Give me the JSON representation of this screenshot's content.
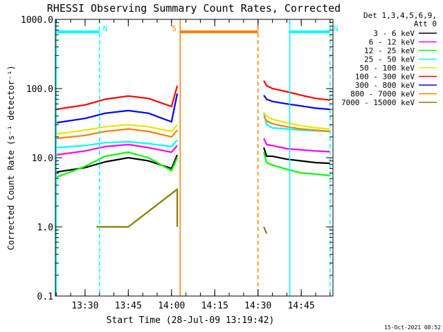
{
  "chart_data": {
    "type": "line",
    "title": "RHESSI Observing Summary Count Rates, Corrected",
    "xlabel": "Start Time (28-Jul-09 13:19:42)",
    "ylabel": "Corrected Count Rate (s⁻¹ detector⁻¹)",
    "y_scale": "log",
    "ylim": [
      0.1,
      1000
    ],
    "xlim": [
      "13:19:42",
      "14:56:00"
    ],
    "x_ticks": [
      "13:30",
      "13:45",
      "14:00",
      "14:15",
      "14:30",
      "14:45"
    ],
    "y_ticks": [
      "0.1",
      "1.0",
      "10.0",
      "100.0",
      "1000.0"
    ],
    "legend_position": "right",
    "legend_header": [
      "Det 1,3,4,5,6,9,",
      "Att 0"
    ],
    "timestamp": "15-Oct-2021 08:52",
    "series": [
      {
        "name": "3 - 6 keV",
        "color": "#000000",
        "x": [
          "13:20",
          "13:30",
          "13:37",
          "13:45",
          "13:52",
          "14:00",
          "14:02",
          "14:31",
          "14:32",
          "14:33",
          "14:35",
          "14:40",
          "14:45",
          "14:50",
          "14:55"
        ],
        "y": [
          6.2,
          7.2,
          8.7,
          10.0,
          9.0,
          7.0,
          11.0,
          null,
          14.0,
          10.5,
          10.5,
          9.5,
          9.0,
          8.5,
          8.3
        ]
      },
      {
        "name": "6 - 12 keV",
        "color": "#ff00ff",
        "x": [
          "13:20",
          "13:30",
          "13:37",
          "13:45",
          "13:52",
          "14:00",
          "14:02",
          "14:31",
          "14:32",
          "14:33",
          "14:35",
          "14:40",
          "14:45",
          "14:50",
          "14:55"
        ],
        "y": [
          11.0,
          12.5,
          14.5,
          15.5,
          14.0,
          12.0,
          15.0,
          null,
          19.0,
          15.5,
          15.0,
          13.5,
          13.0,
          12.5,
          12.2
        ]
      },
      {
        "name": "12 - 25 keV",
        "color": "#00ff00",
        "x": [
          "13:20",
          "13:30",
          "13:37",
          "13:45",
          "13:52",
          "14:00",
          "14:02",
          "14:31",
          "14:32",
          "14:33",
          "14:35",
          "14:40",
          "14:45",
          "14:50",
          "14:55"
        ],
        "y": [
          5.2,
          7.5,
          10.5,
          12.0,
          10.0,
          6.5,
          10.0,
          null,
          12.0,
          8.5,
          7.8,
          6.8,
          6.0,
          5.8,
          5.5
        ]
      },
      {
        "name": "25 - 50 keV",
        "color": "#00ffff",
        "x": [
          "13:20",
          "13:30",
          "13:37",
          "13:45",
          "13:52",
          "14:00",
          "14:02",
          "14:31",
          "14:32",
          "14:33",
          "14:35",
          "14:40",
          "14:45",
          "14:50",
          "14:55"
        ],
        "y": [
          14.0,
          15.0,
          16.5,
          17.0,
          16.0,
          14.5,
          18.0,
          null,
          45.0,
          30.0,
          27.0,
          26.0,
          25.0,
          24.5,
          24.0
        ]
      },
      {
        "name": "50 - 100 keV",
        "color": "#e6e600",
        "x": [
          "13:20",
          "13:30",
          "13:37",
          "13:45",
          "13:52",
          "14:00",
          "14:02",
          "14:31",
          "14:32",
          "14:33",
          "14:35",
          "14:40",
          "14:45",
          "14:50",
          "14:55"
        ],
        "y": [
          22.0,
          25.0,
          28.0,
          30.0,
          28.0,
          24.0,
          30.0,
          null,
          45.0,
          40.0,
          36.0,
          32.0,
          29.0,
          27.0,
          26.0
        ]
      },
      {
        "name": "100 - 300 keV",
        "color": "#ff0000",
        "x": [
          "13:20",
          "13:30",
          "13:37",
          "13:45",
          "13:52",
          "14:00",
          "14:02",
          "14:31",
          "14:32",
          "14:33",
          "14:35",
          "14:40",
          "14:45",
          "14:50",
          "14:55"
        ],
        "y": [
          50.0,
          58.0,
          70.0,
          78.0,
          72.0,
          55.0,
          110.0,
          null,
          130.0,
          110.0,
          100.0,
          90.0,
          80.0,
          72.0,
          68.0
        ]
      },
      {
        "name": "300 - 800 keV",
        "color": "#0000ff",
        "x": [
          "13:20",
          "13:30",
          "13:37",
          "13:45",
          "13:52",
          "14:00",
          "14:02",
          "14:31",
          "14:32",
          "14:33",
          "14:35",
          "14:40",
          "14:45",
          "14:50",
          "14:55"
        ],
        "y": [
          32.0,
          37.0,
          44.0,
          48.0,
          44.0,
          33.0,
          85.0,
          null,
          80.0,
          70.0,
          65.0,
          60.0,
          56.0,
          52.0,
          50.0
        ]
      },
      {
        "name": "800 - 7000 keV",
        "color": "#ff8000",
        "x": [
          "13:20",
          "13:30",
          "13:37",
          "13:45",
          "13:52",
          "14:00",
          "14:02",
          "14:31",
          "14:32",
          "14:33",
          "14:35",
          "14:40",
          "14:45",
          "14:50",
          "14:55"
        ],
        "y": [
          19.0,
          21.0,
          24.0,
          26.0,
          24.0,
          20.0,
          25.0,
          null,
          40.0,
          34.0,
          31.0,
          28.0,
          26.0,
          25.0,
          24.0
        ]
      },
      {
        "name": "7000 - 15000 keV",
        "color": "#808000",
        "x": [
          "13:20",
          "13:30",
          "13:34",
          "13:36",
          "13:45",
          "14:02",
          "14:02",
          "14:31",
          "14:32",
          "14:33"
        ],
        "y": [
          null,
          null,
          1.0,
          1.0,
          1.0,
          3.5,
          1.0,
          null,
          1.0,
          0.8
        ]
      }
    ],
    "attenuator_bars": [
      {
        "label": "N",
        "color": "#00ffff",
        "start": "13:20",
        "end": "13:35"
      },
      {
        "label": "N",
        "color": "#00ffff",
        "start": "14:41",
        "end": "14:55"
      },
      {
        "label": "S",
        "color": "#ff8000",
        "start": "14:03",
        "end": "14:30"
      }
    ],
    "vertical_markers": [
      {
        "time": "13:20",
        "style": "solid",
        "color": "#00ffff"
      },
      {
        "time": "13:35",
        "style": "dashed",
        "color": "#00ffff"
      },
      {
        "time": "14:03",
        "style": "solid",
        "color": "#ff8000"
      },
      {
        "time": "14:30",
        "style": "dashed",
        "color": "#ff8000"
      },
      {
        "time": "14:41",
        "style": "solid",
        "color": "#00ffff"
      },
      {
        "time": "14:55",
        "style": "dashed",
        "color": "#00ffff"
      }
    ]
  }
}
